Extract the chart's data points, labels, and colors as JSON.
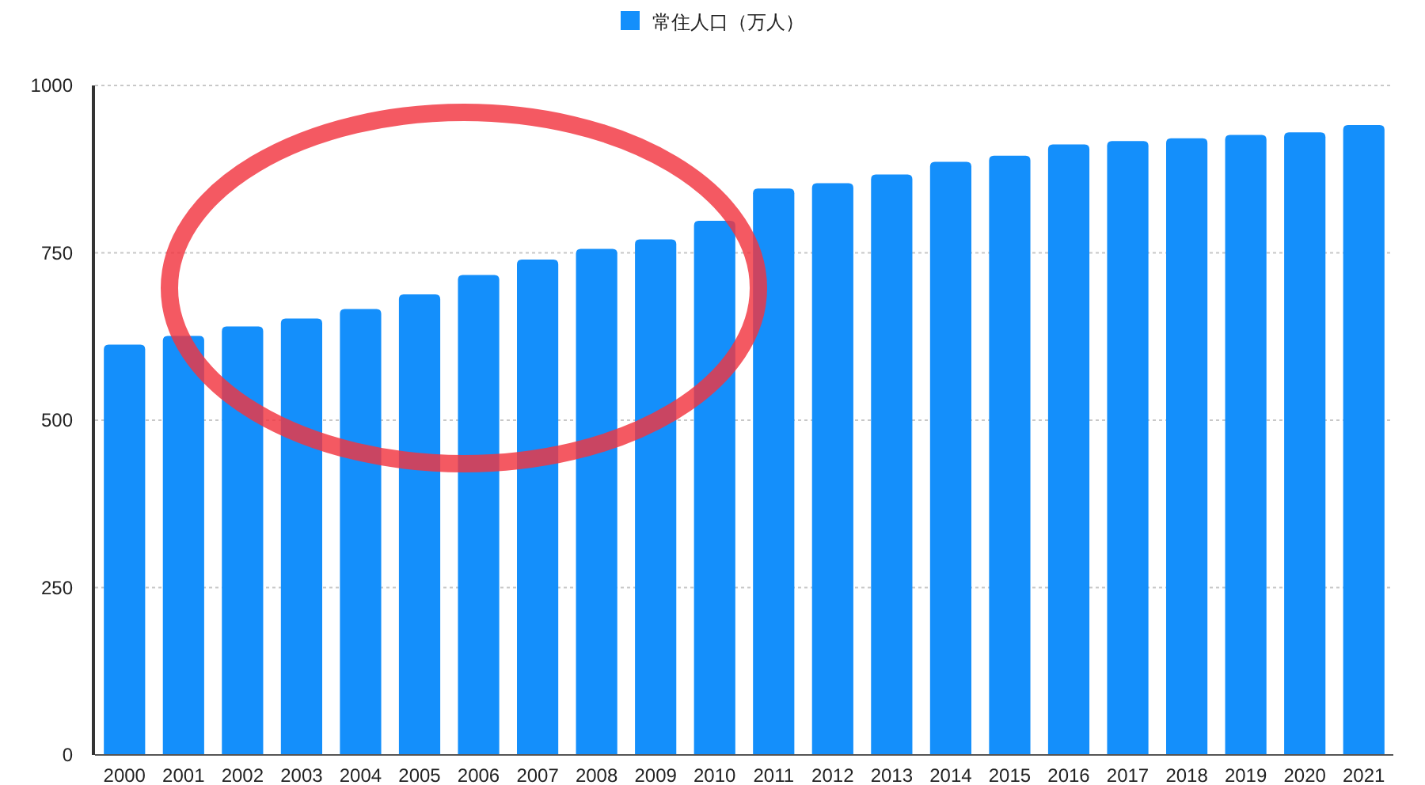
{
  "chart_data": {
    "type": "bar",
    "categories": [
      "2000",
      "2001",
      "2002",
      "2003",
      "2004",
      "2005",
      "2006",
      "2007",
      "2008",
      "2009",
      "2010",
      "2011",
      "2012",
      "2013",
      "2014",
      "2015",
      "2016",
      "2017",
      "2018",
      "2019",
      "2020",
      "2021"
    ],
    "series": [
      {
        "name": "常住人口（万人）",
        "color": "#148ffb",
        "values": [
          613,
          626,
          640,
          652,
          666,
          688,
          717,
          740,
          756,
          770,
          798,
          846,
          854,
          867,
          886,
          895,
          912,
          917,
          921,
          926,
          930,
          941
        ]
      }
    ],
    "ylim": [
      0,
      1000
    ],
    "yticks": [
      0,
      250,
      500,
      750,
      1000
    ],
    "grid": "y",
    "legend": "top"
  }
}
